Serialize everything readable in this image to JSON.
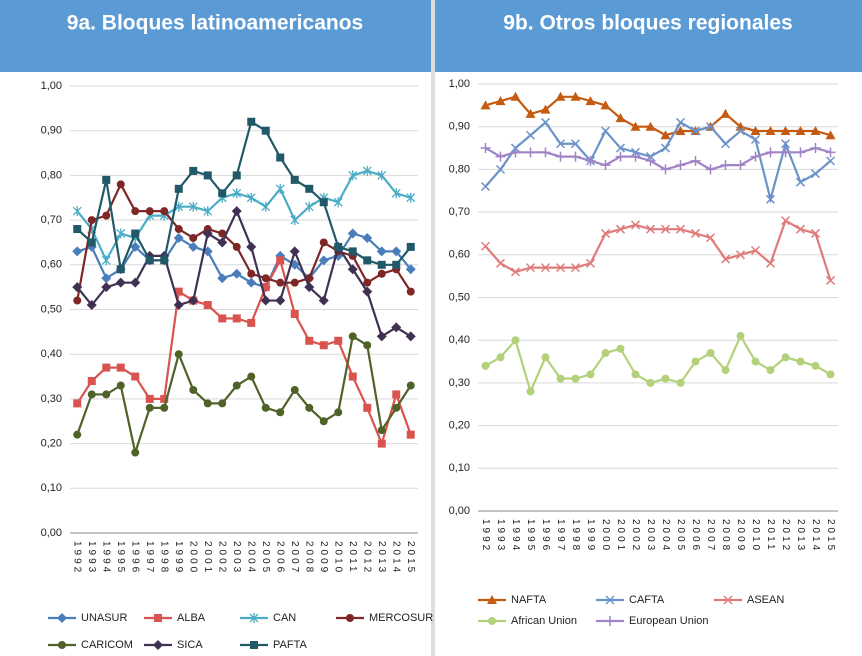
{
  "chart_data": [
    {
      "type": "line",
      "title": "9a. Bloques latinoamericanos",
      "categories": [
        "1992",
        "1993",
        "1994",
        "1995",
        "1996",
        "1997",
        "1998",
        "1999",
        "2000",
        "2001",
        "2002",
        "2003",
        "2004",
        "2005",
        "2006",
        "2007",
        "2008",
        "2009",
        "2010",
        "2011",
        "2012",
        "2013",
        "2014",
        "2015"
      ],
      "ylim": [
        0,
        1
      ],
      "yticks": [
        {
          "value": 0,
          "label": "0,00"
        },
        {
          "value": 0.1,
          "label": "0,10"
        },
        {
          "value": 0.2,
          "label": "0,20"
        },
        {
          "value": 0.3,
          "label": "0,30"
        },
        {
          "value": 0.4,
          "label": "0,40"
        },
        {
          "value": 0.5,
          "label": "0,50"
        },
        {
          "value": 0.6,
          "label": "0,60"
        },
        {
          "value": 0.7,
          "label": "0,70"
        },
        {
          "value": 0.8,
          "label": "0,80"
        },
        {
          "value": 0.9,
          "label": "0,90"
        },
        {
          "value": 1,
          "label": "1,00"
        }
      ],
      "grid": true,
      "series": [
        {
          "name": "UNASUR",
          "color": "#4a7ebb",
          "marker": "diamond",
          "values": [
            0.63,
            0.64,
            0.57,
            0.59,
            0.64,
            0.61,
            0.61,
            0.66,
            0.64,
            0.63,
            0.57,
            0.58,
            0.56,
            0.55,
            0.62,
            0.6,
            0.57,
            0.61,
            0.62,
            0.67,
            0.66,
            0.63,
            0.63,
            0.59
          ]
        },
        {
          "name": "ALBA",
          "color": "#d9534f",
          "marker": "square",
          "values": [
            0.29,
            0.34,
            0.37,
            0.37,
            0.35,
            0.3,
            0.3,
            0.54,
            0.52,
            0.51,
            0.48,
            0.48,
            0.47,
            0.55,
            0.61,
            0.49,
            0.43,
            0.42,
            0.43,
            0.35,
            0.28,
            0.2,
            0.31,
            0.22
          ]
        },
        {
          "name": "CAN",
          "color": "#4bacc6",
          "marker": "star",
          "values": [
            0.72,
            0.68,
            0.61,
            0.67,
            0.66,
            0.71,
            0.71,
            0.73,
            0.73,
            0.72,
            0.75,
            0.76,
            0.75,
            0.73,
            0.77,
            0.7,
            0.73,
            0.75,
            0.74,
            0.8,
            0.81,
            0.8,
            0.76,
            0.75
          ]
        },
        {
          "name": "MERCOSUR",
          "color": "#7f2626",
          "marker": "circle",
          "values": [
            0.52,
            0.7,
            0.71,
            0.78,
            0.72,
            0.72,
            0.72,
            0.68,
            0.66,
            0.68,
            0.67,
            0.64,
            0.58,
            0.57,
            0.56,
            0.56,
            0.57,
            0.65,
            0.63,
            0.62,
            0.56,
            0.58,
            0.59,
            0.54
          ]
        },
        {
          "name": "CARICOM",
          "color": "#4f6228",
          "marker": "circle",
          "values": [
            0.22,
            0.31,
            0.31,
            0.33,
            0.18,
            0.28,
            0.28,
            0.4,
            0.32,
            0.29,
            0.29,
            0.33,
            0.35,
            0.28,
            0.27,
            0.32,
            0.28,
            0.25,
            0.27,
            0.44,
            0.42,
            0.23,
            0.28,
            0.33
          ]
        },
        {
          "name": "SICA",
          "color": "#403152",
          "marker": "diamond",
          "values": [
            0.55,
            0.51,
            0.55,
            0.56,
            0.56,
            0.62,
            0.62,
            0.51,
            0.52,
            0.67,
            0.65,
            0.72,
            0.64,
            0.52,
            0.52,
            0.63,
            0.55,
            0.52,
            0.64,
            0.59,
            0.54,
            0.44,
            0.46,
            0.44
          ]
        },
        {
          "name": "PAFTA",
          "color": "#215968",
          "marker": "square",
          "values": [
            0.68,
            0.65,
            0.79,
            0.59,
            0.67,
            0.61,
            0.61,
            0.77,
            0.81,
            0.8,
            0.76,
            0.8,
            0.92,
            0.9,
            0.84,
            0.79,
            0.77,
            0.74,
            0.64,
            0.63,
            0.61,
            0.6,
            0.6,
            0.64
          ]
        }
      ]
    },
    {
      "type": "line",
      "title": "9b. Otros bloques regionales",
      "categories": [
        "1992",
        "1993",
        "1994",
        "1995",
        "1996",
        "1997",
        "1998",
        "1999",
        "2000",
        "2001",
        "2002",
        "2003",
        "2004",
        "2005",
        "2006",
        "2007",
        "2008",
        "2009",
        "2010",
        "2011",
        "2012",
        "2013",
        "2014",
        "2015"
      ],
      "ylim": [
        0,
        1
      ],
      "yticks": [
        {
          "value": 0,
          "label": "0,00"
        },
        {
          "value": 0.1,
          "label": "0,10"
        },
        {
          "value": 0.2,
          "label": "0,20"
        },
        {
          "value": 0.3,
          "label": "0,30"
        },
        {
          "value": 0.4,
          "label": "0,40"
        },
        {
          "value": 0.5,
          "label": "0,50"
        },
        {
          "value": 0.6,
          "label": "0,60"
        },
        {
          "value": 0.7,
          "label": "0,70"
        },
        {
          "value": 0.8,
          "label": "0,80"
        },
        {
          "value": 0.9,
          "label": "0,90"
        },
        {
          "value": 1,
          "label": "1,00"
        }
      ],
      "grid": true,
      "series": [
        {
          "name": "NAFTA",
          "color": "#c55a11",
          "marker": "triangle",
          "values": [
            0.95,
            0.96,
            0.97,
            0.93,
            0.94,
            0.97,
            0.97,
            0.96,
            0.95,
            0.92,
            0.9,
            0.9,
            0.88,
            0.89,
            0.89,
            0.9,
            0.93,
            0.9,
            0.89,
            0.89,
            0.89,
            0.89,
            0.89,
            0.88
          ]
        },
        {
          "name": "CAFTA",
          "color": "#6b93c8",
          "marker": "x",
          "values": [
            0.76,
            0.8,
            0.85,
            0.88,
            0.91,
            0.86,
            0.86,
            0.82,
            0.89,
            0.85,
            0.84,
            0.83,
            0.85,
            0.91,
            0.89,
            0.9,
            0.86,
            0.89,
            0.87,
            0.73,
            0.86,
            0.77,
            0.79,
            0.82
          ]
        },
        {
          "name": "ASEAN",
          "color": "#e07b7b",
          "marker": "x",
          "values": [
            0.62,
            0.58,
            0.56,
            0.57,
            0.57,
            0.57,
            0.57,
            0.58,
            0.65,
            0.66,
            0.67,
            0.66,
            0.66,
            0.66,
            0.65,
            0.64,
            0.59,
            0.6,
            0.61,
            0.58,
            0.68,
            0.66,
            0.65,
            0.54
          ]
        },
        {
          "name": "African Union",
          "color": "#b3d17a",
          "marker": "circle",
          "values": [
            0.34,
            0.36,
            0.4,
            0.28,
            0.36,
            0.31,
            0.31,
            0.32,
            0.37,
            0.38,
            0.32,
            0.3,
            0.31,
            0.3,
            0.35,
            0.37,
            0.33,
            0.41,
            0.35,
            0.33,
            0.36,
            0.35,
            0.34,
            0.32
          ]
        },
        {
          "name": "European Union",
          "color": "#a084c6",
          "marker": "plus",
          "values": [
            0.85,
            0.83,
            0.84,
            0.84,
            0.84,
            0.83,
            0.83,
            0.82,
            0.81,
            0.83,
            0.83,
            0.82,
            0.8,
            0.81,
            0.82,
            0.8,
            0.81,
            0.81,
            0.83,
            0.84,
            0.84,
            0.84,
            0.85,
            0.84
          ]
        }
      ]
    }
  ]
}
